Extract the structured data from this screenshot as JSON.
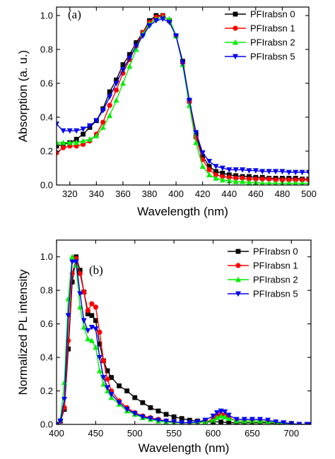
{
  "chart_data": [
    {
      "type": "line",
      "panel_label": "(a)",
      "xlabel": "Wavelength (nm)",
      "ylabel": "Absorption (a. u.)",
      "xlim": [
        310,
        500
      ],
      "ylim": [
        0.0,
        1.05
      ],
      "xticks": [
        320,
        340,
        360,
        380,
        400,
        420,
        440,
        460,
        480,
        500
      ],
      "yticks": [
        0.0,
        0.2,
        0.4,
        0.6,
        0.8,
        1.0
      ],
      "x_tick_labels": [
        "320",
        "340",
        "360",
        "380",
        "400",
        "420",
        "440",
        "460",
        "480",
        "500"
      ],
      "y_tick_labels": [
        "0.0",
        "0.2",
        "0.4",
        "0.6",
        "0.8",
        "1.0"
      ],
      "grid": false,
      "legend_position": "top-right",
      "series": [
        {
          "name": "PFIrabsn 0",
          "color": "#000000",
          "marker": "square",
          "x": [
            310,
            315,
            320,
            325,
            330,
            335,
            340,
            345,
            350,
            355,
            360,
            365,
            370,
            375,
            380,
            385,
            390,
            395,
            400,
            405,
            410,
            415,
            420,
            425,
            430,
            435,
            440,
            445,
            450,
            455,
            460,
            465,
            470,
            475,
            480,
            485,
            490,
            495,
            500
          ],
          "y": [
            0.23,
            0.24,
            0.25,
            0.27,
            0.3,
            0.34,
            0.38,
            0.45,
            0.55,
            0.62,
            0.71,
            0.77,
            0.84,
            0.9,
            0.97,
            1.0,
            1.0,
            0.97,
            0.88,
            0.73,
            0.5,
            0.3,
            0.17,
            0.11,
            0.08,
            0.07,
            0.06,
            0.055,
            0.05,
            0.05,
            0.045,
            0.045,
            0.04,
            0.04,
            0.04,
            0.04,
            0.04,
            0.035,
            0.035
          ]
        },
        {
          "name": "PFIrabsn 1",
          "color": "#ff0000",
          "marker": "circle",
          "x": [
            310,
            315,
            320,
            325,
            330,
            335,
            340,
            345,
            350,
            355,
            360,
            365,
            370,
            375,
            380,
            385,
            390,
            395,
            400,
            405,
            410,
            415,
            420,
            425,
            430,
            435,
            440,
            445,
            450,
            455,
            460,
            465,
            470,
            475,
            480,
            485,
            490,
            495,
            500
          ],
          "y": [
            0.19,
            0.22,
            0.23,
            0.23,
            0.24,
            0.26,
            0.3,
            0.37,
            0.47,
            0.56,
            0.66,
            0.74,
            0.82,
            0.9,
            0.96,
            0.99,
            1.0,
            0.97,
            0.88,
            0.72,
            0.49,
            0.28,
            0.15,
            0.09,
            0.06,
            0.05,
            0.045,
            0.04,
            0.04,
            0.035,
            0.035,
            0.035,
            0.035,
            0.03,
            0.03,
            0.03,
            0.03,
            0.03,
            0.03
          ]
        },
        {
          "name": "PFIrabsn 2",
          "color": "#00ee00",
          "marker": "triangle-up",
          "x": [
            310,
            315,
            320,
            325,
            330,
            335,
            340,
            345,
            350,
            355,
            360,
            365,
            370,
            375,
            380,
            385,
            390,
            395,
            400,
            405,
            410,
            415,
            420,
            425,
            430,
            435,
            440,
            445,
            450,
            455,
            460,
            465,
            470,
            475,
            480,
            485,
            490,
            495,
            500
          ],
          "y": [
            0.25,
            0.25,
            0.25,
            0.25,
            0.26,
            0.27,
            0.29,
            0.34,
            0.41,
            0.5,
            0.6,
            0.7,
            0.8,
            0.89,
            0.95,
            0.98,
            0.99,
            0.98,
            0.88,
            0.71,
            0.47,
            0.25,
            0.11,
            0.06,
            0.04,
            0.03,
            0.025,
            0.02,
            0.02,
            0.015,
            0.015,
            0.01,
            0.01,
            0.01,
            0.01,
            0.01,
            0.01,
            0.01,
            0.01
          ]
        },
        {
          "name": "PFIrabsn 5",
          "color": "#0000ee",
          "marker": "triangle-down",
          "x": [
            310,
            315,
            320,
            325,
            330,
            335,
            340,
            345,
            350,
            355,
            360,
            365,
            370,
            375,
            380,
            385,
            390,
            395,
            400,
            405,
            410,
            415,
            420,
            425,
            430,
            435,
            440,
            445,
            450,
            455,
            460,
            465,
            470,
            475,
            480,
            485,
            490,
            495,
            500
          ],
          "y": [
            0.36,
            0.32,
            0.32,
            0.32,
            0.33,
            0.35,
            0.38,
            0.44,
            0.52,
            0.6,
            0.68,
            0.75,
            0.82,
            0.88,
            0.94,
            0.97,
            0.98,
            0.96,
            0.88,
            0.72,
            0.5,
            0.31,
            0.19,
            0.14,
            0.11,
            0.1,
            0.09,
            0.09,
            0.09,
            0.085,
            0.085,
            0.08,
            0.08,
            0.08,
            0.08,
            0.075,
            0.075,
            0.075,
            0.075
          ]
        }
      ]
    },
    {
      "type": "line",
      "panel_label": "(b)",
      "xlabel": "Wavelength (nm)",
      "ylabel": "Normalized PL intensity",
      "xlim": [
        400,
        725
      ],
      "ylim": [
        0.0,
        1.1
      ],
      "xticks": [
        400,
        450,
        500,
        550,
        600,
        650,
        700
      ],
      "yticks": [
        0.0,
        0.2,
        0.4,
        0.6,
        0.8,
        1.0
      ],
      "x_tick_labels": [
        "400",
        "450",
        "500",
        "550",
        "600",
        "650",
        "700"
      ],
      "y_tick_labels": [
        "0.0",
        "0.2",
        "0.4",
        "0.6",
        "0.8",
        "1.0"
      ],
      "grid": false,
      "legend_position": "top-right",
      "series": [
        {
          "name": "PFIrabsn 0",
          "color": "#000000",
          "marker": "square",
          "x": [
            400,
            405,
            410,
            415,
            420,
            425,
            430,
            435,
            440,
            445,
            450,
            455,
            460,
            465,
            470,
            480,
            490,
            500,
            510,
            520,
            530,
            540,
            550,
            560,
            570,
            580,
            590,
            600,
            610,
            620,
            630,
            640,
            650,
            660,
            670,
            680,
            690,
            700,
            710,
            720,
            725
          ],
          "y": [
            0.0,
            0.02,
            0.09,
            0.45,
            0.85,
            1.0,
            0.92,
            0.79,
            0.66,
            0.65,
            0.62,
            0.48,
            0.38,
            0.32,
            0.28,
            0.23,
            0.2,
            0.16,
            0.13,
            0.1,
            0.08,
            0.06,
            0.045,
            0.035,
            0.025,
            0.02,
            0.015,
            0.015,
            0.015,
            0.01,
            0.01,
            0.01,
            0.01,
            0.01,
            0.01,
            0.005,
            0.005,
            0.0,
            0.0,
            0.0,
            0.0
          ]
        },
        {
          "name": "PFIrabsn 1",
          "color": "#ff0000",
          "marker": "circle",
          "x": [
            400,
            405,
            410,
            415,
            420,
            425,
            430,
            435,
            440,
            445,
            450,
            455,
            460,
            465,
            470,
            480,
            490,
            500,
            510,
            520,
            530,
            540,
            550,
            560,
            570,
            580,
            590,
            600,
            605,
            610,
            615,
            620,
            630,
            640,
            650,
            660,
            670,
            680,
            690,
            700,
            710,
            720,
            725
          ],
          "y": [
            0.0,
            0.02,
            0.1,
            0.5,
            0.9,
            0.99,
            0.9,
            0.79,
            0.68,
            0.72,
            0.7,
            0.55,
            0.38,
            0.27,
            0.2,
            0.14,
            0.1,
            0.07,
            0.05,
            0.04,
            0.03,
            0.02,
            0.015,
            0.01,
            0.01,
            0.01,
            0.015,
            0.03,
            0.05,
            0.06,
            0.055,
            0.04,
            0.02,
            0.02,
            0.02,
            0.02,
            0.015,
            0.01,
            0.005,
            0.0,
            0.0,
            0.0,
            0.0
          ]
        },
        {
          "name": "PFIrabsn 2",
          "color": "#00ee00",
          "marker": "triangle-up",
          "x": [
            400,
            405,
            410,
            415,
            420,
            425,
            430,
            435,
            440,
            445,
            450,
            455,
            460,
            465,
            470,
            480,
            490,
            500,
            510,
            520,
            530,
            540,
            550,
            560,
            570,
            580,
            590,
            600,
            605,
            610,
            615,
            620,
            630,
            640,
            650,
            660,
            670,
            680,
            690,
            700,
            710,
            720,
            725
          ],
          "y": [
            0.0,
            0.03,
            0.25,
            0.75,
            1.0,
            0.95,
            0.7,
            0.58,
            0.51,
            0.5,
            0.46,
            0.32,
            0.24,
            0.2,
            0.16,
            0.12,
            0.08,
            0.06,
            0.04,
            0.03,
            0.02,
            0.015,
            0.01,
            0.01,
            0.01,
            0.01,
            0.015,
            0.025,
            0.04,
            0.05,
            0.045,
            0.035,
            0.02,
            0.02,
            0.02,
            0.02,
            0.015,
            0.01,
            0.005,
            0.0,
            0.0,
            0.0,
            0.0
          ]
        },
        {
          "name": "PFIrabsn 5",
          "color": "#0000ee",
          "marker": "triangle-down",
          "x": [
            400,
            405,
            410,
            415,
            420,
            425,
            430,
            435,
            440,
            445,
            450,
            455,
            460,
            465,
            470,
            480,
            490,
            500,
            510,
            520,
            530,
            540,
            550,
            560,
            570,
            580,
            590,
            600,
            605,
            610,
            615,
            620,
            630,
            640,
            650,
            660,
            670,
            680,
            690,
            700,
            710,
            720,
            725
          ],
          "y": [
            0.0,
            0.02,
            0.15,
            0.65,
            0.97,
            0.97,
            0.78,
            0.62,
            0.56,
            0.58,
            0.57,
            0.4,
            0.28,
            0.22,
            0.18,
            0.13,
            0.09,
            0.065,
            0.045,
            0.035,
            0.025,
            0.02,
            0.015,
            0.01,
            0.01,
            0.015,
            0.025,
            0.05,
            0.07,
            0.08,
            0.075,
            0.055,
            0.03,
            0.03,
            0.03,
            0.03,
            0.025,
            0.015,
            0.01,
            0.005,
            0.0,
            0.0,
            0.0
          ]
        }
      ]
    }
  ]
}
